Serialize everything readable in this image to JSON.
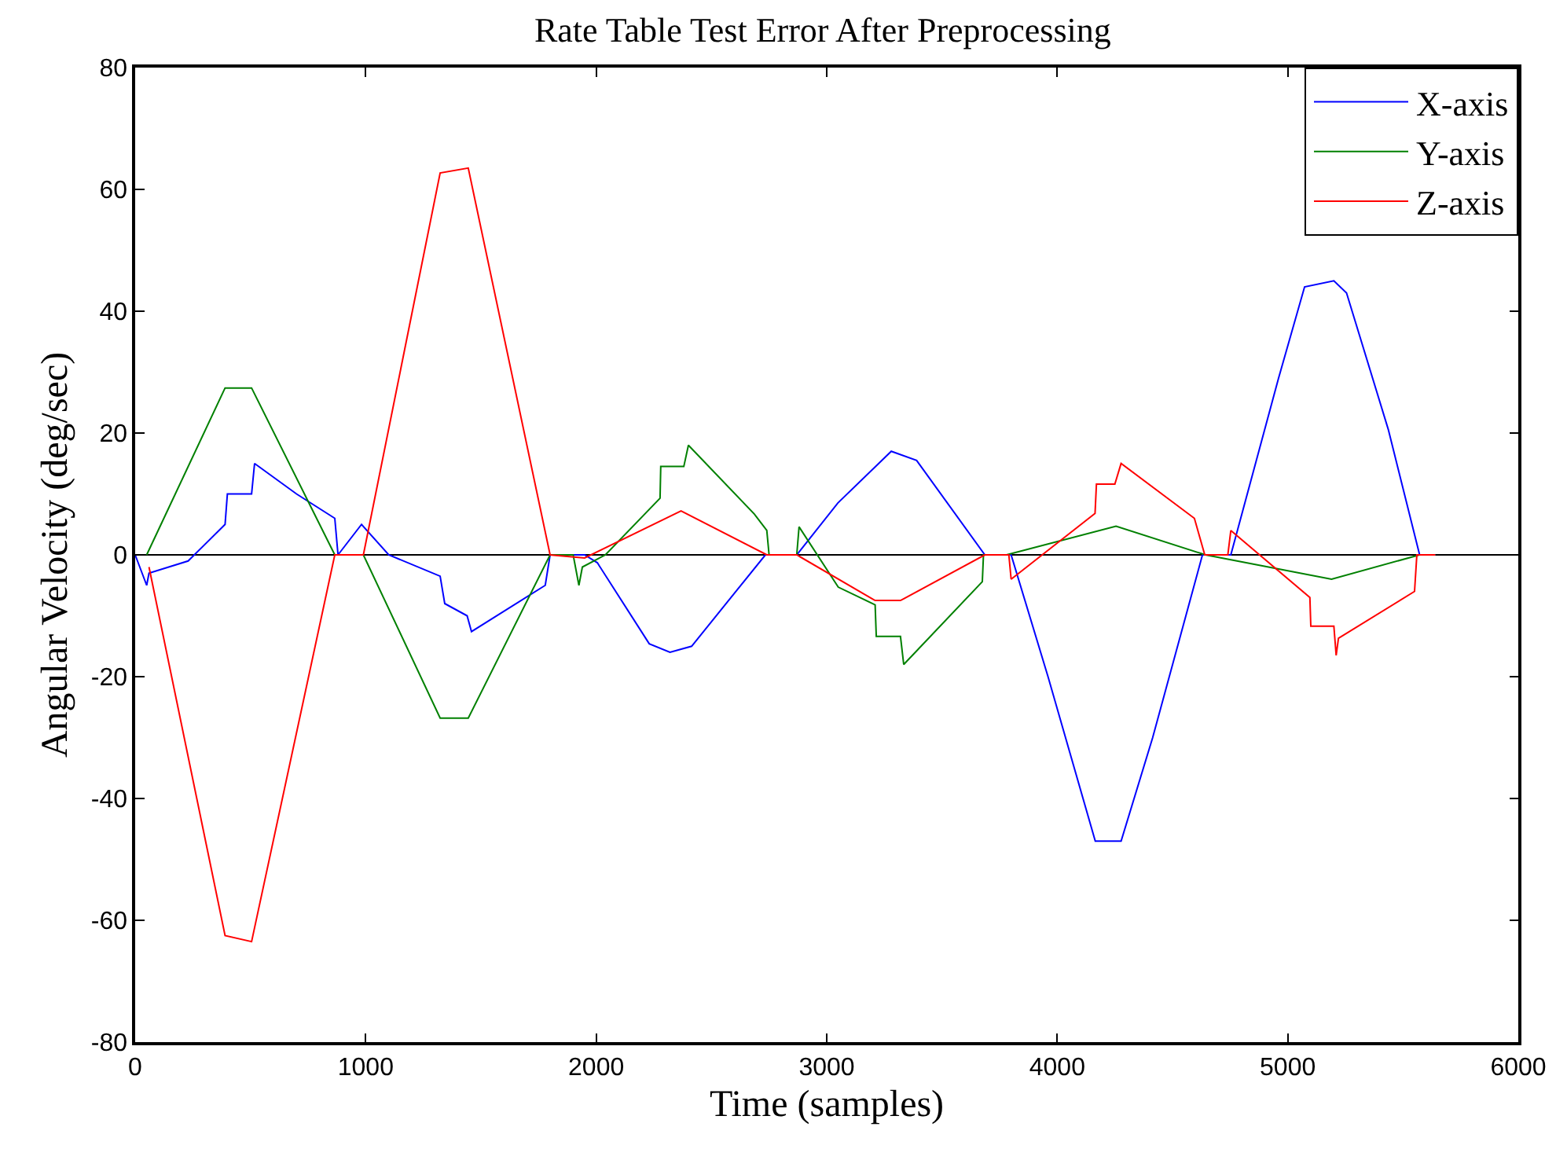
{
  "chart_data": {
    "type": "line",
    "title": "Rate Table Test Error After Preprocessing",
    "xlabel": "Time (samples)",
    "ylabel": "Angular Velocity (deg/sec)",
    "xlim": [
      0,
      6000
    ],
    "xticks": [
      0,
      1000,
      2000,
      3000,
      4000,
      5000,
      6000
    ],
    "ylim": [
      -80,
      80
    ],
    "yticks": [
      -80,
      -60,
      -40,
      -20,
      0,
      20,
      40,
      60,
      80
    ],
    "grid": false,
    "legend": "top right",
    "line_style": "solid",
    "marker": "none",
    "ref_lines": [
      {
        "axis": "y",
        "value": 0,
        "color": "#000000"
      }
    ],
    "series": [
      {
        "name": "X-axis",
        "color": "#0000ff",
        "x": [
          0,
          50,
          60,
          230,
          390,
          400,
          505,
          518,
          700,
          866,
          880,
          982,
          1100,
          1323,
          1343,
          1440,
          1459,
          1779,
          1800,
          1950,
          2005,
          2230,
          2320,
          2414,
          2734,
          2870,
          3048,
          3280,
          3390,
          3686,
          3790,
          3800,
          3960,
          4165,
          4277,
          4414,
          4630,
          4740,
          4753,
          4960,
          5073,
          5200,
          5255,
          5436,
          5572,
          5640
        ],
        "values": [
          0,
          -5,
          -3,
          -1,
          5,
          10,
          10,
          15,
          10,
          6,
          0,
          5,
          0,
          -3.5,
          -8,
          -10,
          -12.6,
          -5,
          0,
          0,
          -1.3,
          -14.6,
          -16,
          -15,
          0,
          0,
          8.5,
          17,
          15.5,
          0,
          0,
          0,
          -20,
          -47,
          -47,
          -30,
          0,
          0,
          0,
          29,
          44,
          45,
          43,
          20.6,
          0,
          0
        ]
      },
      {
        "name": "Y-axis",
        "color": "#008000",
        "x": [
          50,
          390,
          505,
          866,
          990,
          1323,
          1445,
          1800,
          1900,
          1925,
          1940,
          2040,
          2277,
          2280,
          2380,
          2400,
          2686,
          2740,
          2750,
          2870,
          2880,
          3050,
          3210,
          3215,
          3320,
          3334,
          3675,
          3680,
          3780,
          4255,
          4643,
          5190,
          5572,
          5640
        ],
        "values": [
          0,
          27.4,
          27.4,
          0,
          0,
          -26.8,
          -26.8,
          0,
          0,
          -5,
          -2,
          0,
          9.3,
          14.5,
          14.5,
          18,
          6.7,
          4,
          0,
          0,
          4.6,
          -5.3,
          -8.2,
          -13.4,
          -13.4,
          -18,
          -4.4,
          0,
          0,
          4.7,
          0,
          -4,
          0,
          0
        ]
      },
      {
        "name": "Z-axis",
        "color": "#ff0000",
        "x": [
          60,
          390,
          505,
          866,
          990,
          1323,
          1445,
          1800,
          1950,
          2368,
          2740,
          2870,
          3210,
          3320,
          3686,
          3790,
          3800,
          4164,
          4170,
          4250,
          4277,
          4595,
          4640,
          4740,
          4753,
          5096,
          5100,
          5200,
          5210,
          5220,
          5550,
          5560,
          5640
        ],
        "values": [
          -2,
          -62.5,
          -63.5,
          0,
          0,
          62.7,
          63.5,
          0,
          -0.5,
          7.2,
          0,
          0,
          -7.5,
          -7.5,
          0,
          0,
          -4,
          6.8,
          11.6,
          11.6,
          15,
          6,
          0,
          0,
          4,
          -7,
          -11.7,
          -11.7,
          -16.5,
          -13.7,
          -6,
          0,
          0
        ]
      }
    ]
  }
}
